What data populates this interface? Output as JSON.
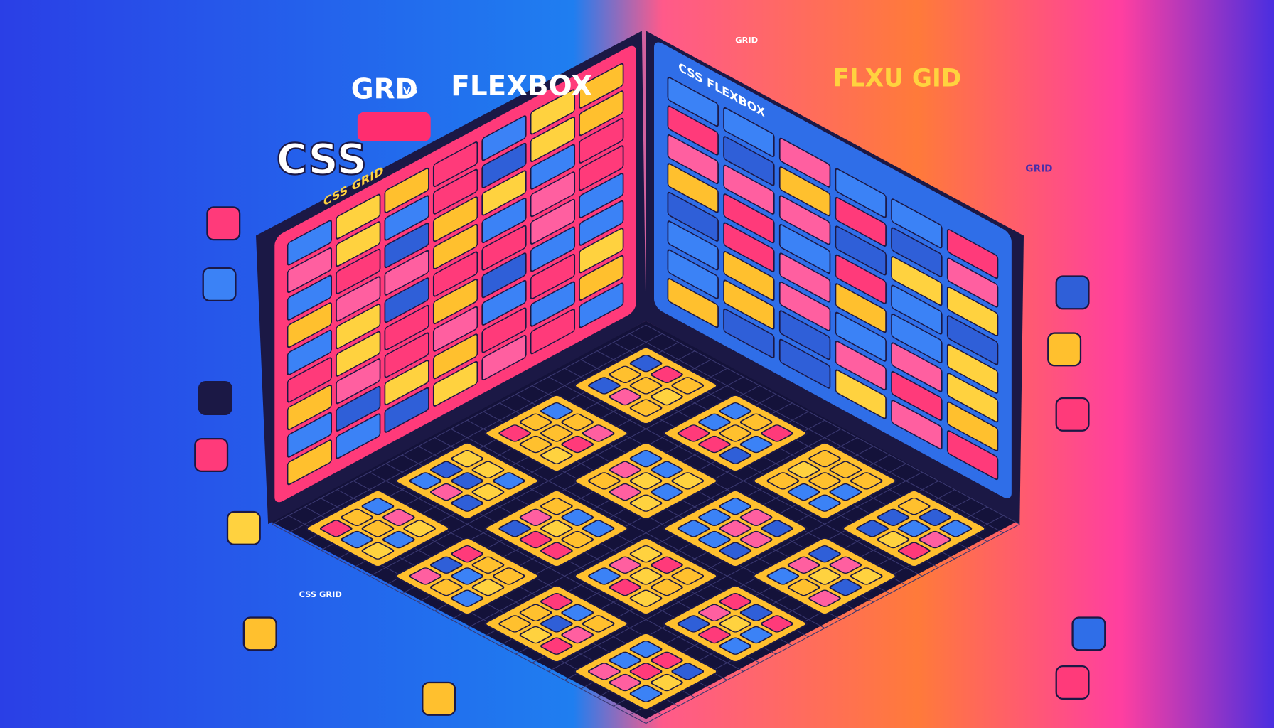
{
  "title": {
    "css": "CSS",
    "grd": "GRD",
    "vs": "VS",
    "flexbox": "FLEXBOX"
  },
  "panels": {
    "left": "CSS GRID",
    "right": "CSS FLEXBOX",
    "left_sub": "CSS GRID"
  },
  "right_title": "FLXU GID",
  "labels": {
    "top_right": "GRID",
    "side_right": "GRID",
    "bottom_left": "CSS GRID"
  }
}
